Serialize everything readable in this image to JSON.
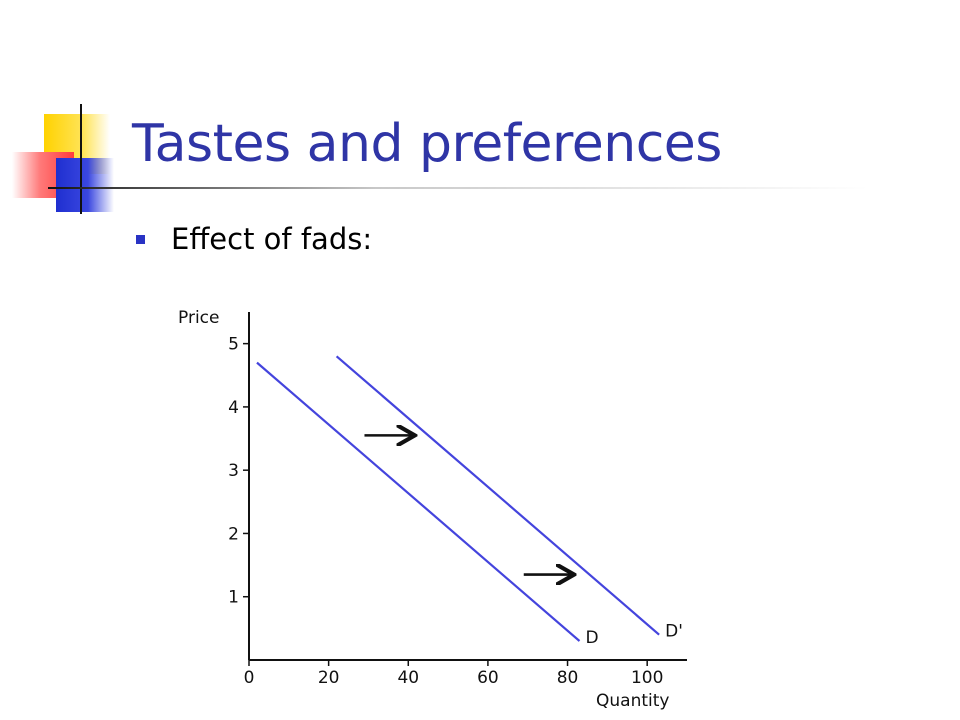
{
  "slide": {
    "title": "Tastes and preferences",
    "bullet": "Effect of fads:",
    "title_color": "#2f35a6",
    "bullet_color": "#2933c4"
  },
  "chart_data": {
    "type": "line",
    "title": "",
    "xlabel": "Quantity",
    "ylabel": "Price",
    "xlim": [
      0,
      110
    ],
    "ylim": [
      0,
      5.5
    ],
    "xticks": [
      0,
      20,
      40,
      60,
      80,
      100
    ],
    "yticks": [
      1,
      2,
      3,
      4,
      5
    ],
    "grid": false,
    "line_color": "#4444dd",
    "series": [
      {
        "name": "D",
        "x": [
          2,
          83
        ],
        "y": [
          4.7,
          0.3
        ]
      },
      {
        "name": "D'",
        "x": [
          22,
          103
        ],
        "y": [
          4.8,
          0.4
        ]
      }
    ],
    "annotations": [
      {
        "type": "arrow",
        "direction": "right",
        "x": [
          29,
          41
        ],
        "y": 3.55
      },
      {
        "type": "arrow",
        "direction": "right",
        "x": [
          69,
          81
        ],
        "y": 1.35
      }
    ]
  }
}
